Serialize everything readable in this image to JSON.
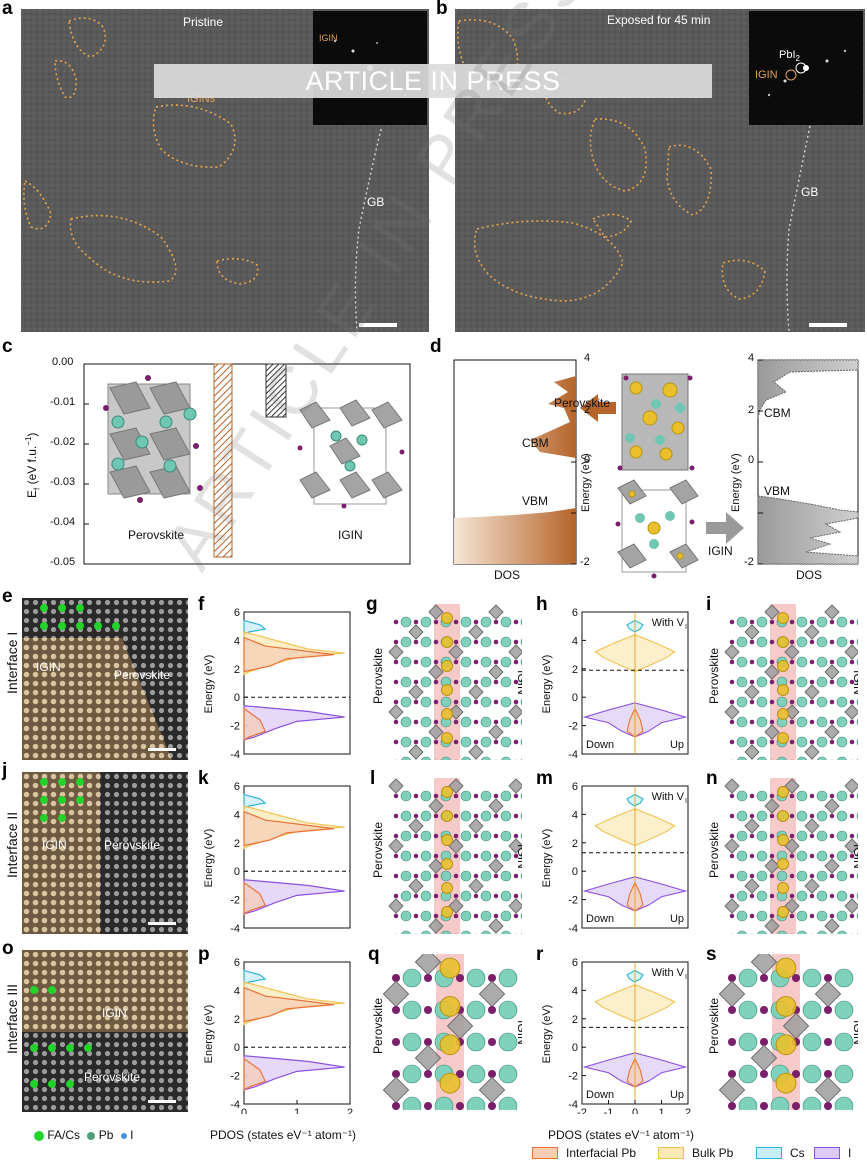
{
  "panels": {
    "a": {
      "label": "a",
      "title": "Pristine",
      "igin_tag": "IGIN",
      "igins_tag": "IGINs",
      "gb": "GB"
    },
    "b": {
      "label": "b",
      "title": "Exposed for 45 min",
      "pbi_tag": "PbI",
      "pbi_sub": "2",
      "igin_tag": "IGIN",
      "gb": "GB"
    },
    "c": {
      "label": "c",
      "ylabel": "E",
      "ylabel_sub": "f",
      "ylabel_unit": " (eV f.u.",
      "ylabel_sup": "−1",
      "ylabel_close": ")",
      "yticks": [
        "0.00",
        "-0.01",
        "-0.02",
        "-0.03",
        "-0.04",
        "-0.05"
      ],
      "left_name": "Perovskite",
      "right_name": "IGIN"
    },
    "d": {
      "label": "d",
      "perovskite": "Perovskite",
      "cbm": "CBM",
      "vbm": "VBM",
      "dos": "DOS",
      "energy": "Energy (eV)",
      "igin": "IGIN",
      "ticks_left": [
        "4",
        "2",
        "0",
        "-2"
      ],
      "ticks_right": [
        "4",
        "2",
        "0",
        "-2"
      ]
    },
    "e": {
      "label": "e",
      "row": "Interface I",
      "igin": "IGIN",
      "perovskite": "Perovskite"
    },
    "j": {
      "label": "j",
      "row": "Interface II",
      "igin": "IGIN",
      "perovskite": "Perovskite"
    },
    "o": {
      "label": "o",
      "row": "Interface III",
      "igin": "IGIN",
      "perovskite": "Perovskite"
    },
    "f": {
      "label": "f"
    },
    "k": {
      "label": "k"
    },
    "p": {
      "label": "p"
    },
    "g": {
      "label": "g"
    },
    "l": {
      "label": "l"
    },
    "q": {
      "label": "q"
    },
    "h": {
      "label": "h",
      "with_v": "With V",
      "with_v_sub": "I",
      "down": "Down",
      "up": "Up"
    },
    "m": {
      "label": "m",
      "with_v": "With V",
      "with_v_sub": "I",
      "down": "Down",
      "up": "Up"
    },
    "r": {
      "label": "r",
      "with_v": "With V",
      "with_v_sub": "I",
      "down": "Down",
      "up": "Up"
    },
    "i": {
      "label": "i"
    },
    "n": {
      "label": "n"
    },
    "s": {
      "label": "s"
    },
    "struct": {
      "perovskite": "Perovskite",
      "igin": "IGIN"
    }
  },
  "axes": {
    "energy_label": "Energy (eV)",
    "energy_ticks": [
      "6",
      "4",
      "2",
      "0",
      "-2",
      "-4"
    ],
    "pdos_ticks_left": [
      "0",
      "1",
      "2"
    ],
    "pdos_ticks_right": [
      "-2",
      "-1",
      "0",
      "1",
      "2"
    ],
    "pdos_label": "PDOS (states eV⁻¹ atom⁻¹)"
  },
  "atom_legend": {
    "fa_cs": "FA/Cs",
    "pb": "Pb",
    "i": "I"
  },
  "legend": {
    "interfacial_pb": "Interfacial Pb",
    "bulk_pb": "Bulk Pb",
    "cs": "Cs",
    "i": "I"
  },
  "colors": {
    "interfacial_pb": "#e8733a",
    "bulk_pb": "#f2c14e",
    "cs": "#2bb3dc",
    "i": "#8a50e0",
    "igin_tint": "#c9a574",
    "accent": "#b5642a"
  },
  "banner": "ARTICLE IN PRESS",
  "watermark": "ARTICLE IN PRESS"
}
